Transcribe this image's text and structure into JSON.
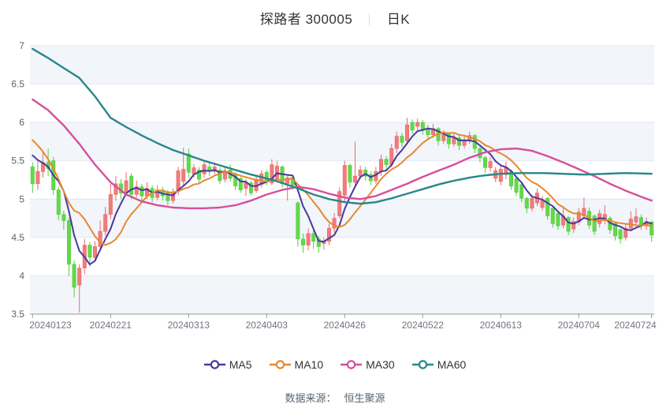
{
  "title": {
    "main": "探路者 300005",
    "separator": "｜",
    "period": "日K"
  },
  "footer": {
    "prefix": "数据来源：",
    "source": "恒生聚源"
  },
  "legend": {
    "items": [
      {
        "label": "MA5",
        "color": "#473a9d"
      },
      {
        "label": "MA10",
        "color": "#e6892f"
      },
      {
        "label": "MA30",
        "color": "#d64f9b"
      },
      {
        "label": "MA60",
        "color": "#27878a"
      }
    ]
  },
  "colors": {
    "up": "#f07c7c",
    "up_border": "#ea6a6a",
    "down": "#63d84b",
    "down_border": "#55cc3e",
    "band": "#f2f5fa",
    "grid": "#e2e8f2",
    "axis": "#999999",
    "axis_label": "#5a6472",
    "x_label": "#6e7682"
  },
  "chart_data": {
    "type": "candlestick",
    "title": "探路者 300005 日K",
    "ylim": [
      3.5,
      7
    ],
    "y_ticks": [
      "7",
      "6.5",
      "6",
      "5.5",
      "5",
      "4.5",
      "4",
      "3.5"
    ],
    "x_tick_labels": [
      "20240123",
      "20240221",
      "20240313",
      "20240403",
      "20240426",
      "20240522",
      "20240613",
      "20240704",
      "20240724"
    ],
    "x_tick_indices": [
      0,
      15,
      30,
      45,
      60,
      75,
      90,
      105,
      119
    ],
    "legend_entries": [
      "MA5",
      "MA10",
      "MA30",
      "MA60"
    ],
    "dates": [
      "20240123",
      "20240124",
      "20240125",
      "20240126",
      "20240129",
      "20240130",
      "20240131",
      "20240201",
      "20240202",
      "20240205",
      "20240206",
      "20240207",
      "20240208",
      "20240219",
      "20240220",
      "20240221",
      "20240222",
      "20240223",
      "20240226",
      "20240227",
      "20240228",
      "20240229",
      "20240301",
      "20240304",
      "20240305",
      "20240306",
      "20240307",
      "20240308",
      "20240311",
      "20240312",
      "20240313",
      "20240314",
      "20240315",
      "20240318",
      "20240319",
      "20240320",
      "20240321",
      "20240322",
      "20240325",
      "20240326",
      "20240327",
      "20240328",
      "20240329",
      "20240401",
      "20240402",
      "20240403",
      "20240408",
      "20240409",
      "20240410",
      "20240411",
      "20240412",
      "20240415",
      "20240416",
      "20240417",
      "20240418",
      "20240419",
      "20240422",
      "20240423",
      "20240424",
      "20240425",
      "20240426",
      "20240429",
      "20240430",
      "20240506",
      "20240507",
      "20240508",
      "20240509",
      "20240510",
      "20240513",
      "20240514",
      "20240515",
      "20240516",
      "20240517",
      "20240520",
      "20240521",
      "20240522",
      "20240523",
      "20240524",
      "20240527",
      "20240528",
      "20240529",
      "20240530",
      "20240531",
      "20240603",
      "20240604",
      "20240605",
      "20240606",
      "20240607",
      "20240611",
      "20240612",
      "20240613",
      "20240614",
      "20240617",
      "20240618",
      "20240619",
      "20240620",
      "20240621",
      "20240624",
      "20240625",
      "20240626",
      "20240627",
      "20240628",
      "20240701",
      "20240702",
      "20240703",
      "20240704",
      "20240705",
      "20240708",
      "20240709",
      "20240710",
      "20240711",
      "20240712",
      "20240715",
      "20240716",
      "20240717",
      "20240718",
      "20240719",
      "20240722",
      "20240723",
      "20240724"
    ],
    "ohlc_order": [
      "open",
      "close",
      "low",
      "high"
    ],
    "ohlc": [
      [
        5.42,
        5.2,
        5.08,
        5.48
      ],
      [
        5.2,
        5.36,
        5.12,
        5.52
      ],
      [
        5.36,
        5.48,
        5.28,
        5.62
      ],
      [
        5.48,
        5.4,
        5.3,
        5.66
      ],
      [
        5.5,
        5.12,
        5.05,
        5.55
      ],
      [
        5.12,
        4.8,
        4.72,
        5.16
      ],
      [
        4.8,
        4.72,
        4.6,
        4.85
      ],
      [
        4.72,
        4.15,
        4.0,
        4.76
      ],
      [
        4.15,
        3.85,
        3.72,
        4.2
      ],
      [
        3.88,
        4.1,
        3.52,
        4.15
      ],
      [
        4.1,
        4.4,
        4.02,
        4.48
      ],
      [
        4.4,
        4.24,
        4.12,
        4.44
      ],
      [
        4.24,
        4.38,
        4.18,
        4.45
      ],
      [
        4.38,
        4.58,
        4.32,
        4.72
      ],
      [
        4.58,
        4.8,
        4.52,
        4.9
      ],
      [
        4.8,
        5.06,
        4.74,
        5.2
      ],
      [
        5.06,
        5.2,
        4.98,
        5.3
      ],
      [
        5.2,
        5.08,
        5.0,
        5.26
      ],
      [
        5.08,
        5.24,
        5.04,
        5.35
      ],
      [
        5.3,
        5.06,
        5.0,
        5.34
      ],
      [
        5.06,
        5.16,
        5.02,
        5.24
      ],
      [
        5.16,
        5.04,
        4.96,
        5.2
      ],
      [
        5.04,
        5.14,
        5.0,
        5.22
      ],
      [
        5.14,
        5.02,
        4.96,
        5.18
      ],
      [
        5.02,
        5.12,
        4.98,
        5.18
      ],
      [
        5.12,
        5.04,
        4.98,
        5.16
      ],
      [
        5.08,
        4.98,
        4.92,
        5.12
      ],
      [
        4.98,
        5.08,
        4.94,
        5.14
      ],
      [
        5.11,
        5.37,
        5.05,
        5.42
      ],
      [
        5.23,
        5.39,
        5.18,
        5.67
      ],
      [
        5.59,
        5.35,
        5.28,
        5.66
      ],
      [
        5.33,
        5.41,
        5.28,
        5.46
      ],
      [
        5.38,
        5.26,
        5.2,
        5.42
      ],
      [
        5.33,
        5.45,
        5.28,
        5.5
      ],
      [
        5.42,
        5.36,
        5.3,
        5.47
      ],
      [
        5.36,
        5.42,
        5.32,
        5.48
      ],
      [
        5.38,
        5.24,
        5.2,
        5.42
      ],
      [
        5.26,
        5.35,
        5.22,
        5.42
      ],
      [
        5.38,
        5.27,
        5.23,
        5.45
      ],
      [
        5.33,
        5.17,
        5.12,
        5.35
      ],
      [
        5.27,
        5.12,
        5.08,
        5.29
      ],
      [
        5.14,
        5.22,
        5.04,
        5.26
      ],
      [
        5.21,
        5.08,
        5.05,
        5.24
      ],
      [
        5.11,
        5.26,
        5.08,
        5.32
      ],
      [
        5.19,
        5.33,
        5.15,
        5.38
      ],
      [
        5.35,
        5.22,
        5.18,
        5.38
      ],
      [
        5.21,
        5.45,
        5.18,
        5.52
      ],
      [
        5.25,
        5.43,
        5.22,
        5.5
      ],
      [
        5.42,
        5.2,
        5.15,
        5.44
      ],
      [
        5.2,
        5.28,
        4.98,
        5.32
      ],
      [
        5.28,
        5.18,
        5.12,
        5.3
      ],
      [
        4.95,
        4.48,
        4.38,
        4.97
      ],
      [
        4.48,
        4.4,
        4.3,
        4.55
      ],
      [
        4.4,
        4.55,
        4.33,
        4.62
      ],
      [
        4.55,
        4.45,
        4.35,
        4.6
      ],
      [
        4.48,
        4.38,
        4.3,
        4.52
      ],
      [
        4.42,
        4.45,
        4.34,
        4.5
      ],
      [
        4.45,
        4.62,
        4.4,
        4.68
      ],
      [
        4.62,
        4.75,
        4.56,
        4.82
      ],
      [
        4.78,
        5.1,
        4.75,
        5.15
      ],
      [
        5.05,
        5.44,
        4.95,
        5.5
      ],
      [
        5.44,
        5.22,
        5.15,
        5.46
      ],
      [
        5.22,
        5.3,
        5.15,
        5.75
      ],
      [
        5.3,
        5.38,
        5.26,
        5.44
      ],
      [
        5.38,
        5.3,
        5.24,
        5.42
      ],
      [
        5.32,
        5.24,
        5.18,
        5.36
      ],
      [
        5.24,
        5.36,
        5.2,
        5.42
      ],
      [
        5.36,
        5.52,
        5.3,
        5.58
      ],
      [
        5.52,
        5.45,
        5.38,
        5.56
      ],
      [
        5.45,
        5.66,
        5.42,
        5.72
      ],
      [
        5.66,
        5.82,
        5.6,
        5.88
      ],
      [
        5.82,
        5.74,
        5.68,
        5.86
      ],
      [
        5.76,
        5.97,
        5.72,
        6.06
      ],
      [
        6.0,
        5.9,
        5.85,
        6.04
      ],
      [
        5.95,
        6.0,
        5.88,
        6.05
      ],
      [
        6.0,
        5.9,
        5.84,
        6.03
      ],
      [
        5.92,
        5.84,
        5.78,
        5.97
      ],
      [
        5.84,
        5.92,
        5.8,
        5.98
      ],
      [
        5.92,
        5.76,
        5.7,
        5.94
      ],
      [
        5.76,
        5.85,
        5.72,
        5.9
      ],
      [
        5.85,
        5.72,
        5.66,
        5.87
      ],
      [
        5.72,
        5.8,
        5.68,
        5.86
      ],
      [
        5.8,
        5.7,
        5.64,
        5.83
      ],
      [
        5.7,
        5.77,
        5.66,
        5.84
      ],
      [
        5.77,
        5.83,
        5.72,
        5.88
      ],
      [
        5.83,
        5.66,
        5.6,
        5.85
      ],
      [
        5.66,
        5.54,
        5.48,
        5.68
      ],
      [
        5.54,
        5.41,
        5.34,
        5.56
      ],
      [
        5.41,
        5.49,
        5.36,
        5.54
      ],
      [
        5.27,
        5.37,
        5.22,
        5.42
      ],
      [
        5.23,
        5.39,
        5.18,
        5.44
      ],
      [
        5.32,
        5.42,
        5.26,
        5.49
      ],
      [
        5.36,
        5.17,
        5.12,
        5.38
      ],
      [
        5.27,
        5.09,
        5.04,
        5.29
      ],
      [
        5.19,
        5.01,
        4.96,
        5.21
      ],
      [
        5.01,
        4.88,
        4.82,
        5.03
      ],
      [
        4.88,
        5.01,
        4.84,
        5.06
      ],
      [
        4.95,
        5.08,
        4.91,
        5.14
      ],
      [
        4.89,
        4.99,
        4.85,
        5.04
      ],
      [
        5.01,
        4.78,
        4.73,
        5.03
      ],
      [
        4.88,
        4.68,
        4.63,
        4.9
      ],
      [
        4.81,
        4.65,
        4.6,
        4.83
      ],
      [
        4.66,
        4.78,
        4.62,
        4.88
      ],
      [
        4.76,
        4.58,
        4.53,
        4.78
      ],
      [
        4.61,
        4.71,
        4.56,
        4.76
      ],
      [
        4.7,
        4.83,
        4.66,
        4.88
      ],
      [
        4.78,
        4.88,
        4.74,
        5.02
      ],
      [
        4.84,
        4.66,
        4.61,
        4.89
      ],
      [
        4.78,
        4.58,
        4.53,
        4.8
      ],
      [
        4.68,
        4.81,
        4.63,
        4.86
      ],
      [
        4.72,
        4.8,
        4.67,
        4.92
      ],
      [
        4.75,
        4.6,
        4.55,
        4.78
      ],
      [
        4.68,
        4.52,
        4.46,
        4.7
      ],
      [
        4.6,
        4.48,
        4.42,
        4.62
      ],
      [
        4.5,
        4.62,
        4.46,
        4.68
      ],
      [
        4.62,
        4.74,
        4.58,
        4.84
      ],
      [
        4.7,
        4.77,
        4.66,
        4.88
      ],
      [
        4.76,
        4.65,
        4.6,
        4.8
      ],
      [
        4.65,
        4.71,
        4.6,
        4.76
      ],
      [
        4.7,
        4.53,
        4.44,
        4.72
      ]
    ],
    "ma5_head": [
      5.57,
      5.51,
      5.47,
      5.42
    ],
    "ma10_head": [
      5.77,
      5.7,
      5.62,
      5.52,
      5.4,
      5.26,
      5.1,
      4.95,
      4.85
    ],
    "ma30_keypoints": [
      [
        0,
        6.3
      ],
      [
        3,
        6.16
      ],
      [
        6,
        5.96
      ],
      [
        9,
        5.72
      ],
      [
        12,
        5.45
      ],
      [
        15,
        5.22
      ],
      [
        18,
        5.06
      ],
      [
        21,
        4.97
      ],
      [
        24,
        4.92
      ],
      [
        27,
        4.89
      ],
      [
        30,
        4.88
      ],
      [
        33,
        4.88
      ],
      [
        36,
        4.89
      ],
      [
        39,
        4.92
      ],
      [
        42,
        4.98
      ],
      [
        45,
        5.06
      ],
      [
        48,
        5.12
      ],
      [
        51,
        5.16
      ],
      [
        54,
        5.13
      ],
      [
        57,
        5.07
      ],
      [
        60,
        5.02
      ],
      [
        63,
        5.0
      ],
      [
        66,
        5.04
      ],
      [
        69,
        5.12
      ],
      [
        72,
        5.2
      ],
      [
        75,
        5.29
      ],
      [
        78,
        5.37
      ],
      [
        81,
        5.45
      ],
      [
        84,
        5.54
      ],
      [
        87,
        5.61
      ],
      [
        90,
        5.65
      ],
      [
        93,
        5.66
      ],
      [
        96,
        5.63
      ],
      [
        99,
        5.56
      ],
      [
        102,
        5.48
      ],
      [
        105,
        5.39
      ],
      [
        108,
        5.3
      ],
      [
        111,
        5.2
      ],
      [
        114,
        5.11
      ],
      [
        117,
        5.03
      ],
      [
        119,
        4.98
      ]
    ],
    "ma60_keypoints": [
      [
        0,
        6.96
      ],
      [
        3,
        6.84
      ],
      [
        6,
        6.71
      ],
      [
        9,
        6.58
      ],
      [
        12,
        6.34
      ],
      [
        15,
        6.06
      ],
      [
        18,
        5.94
      ],
      [
        21,
        5.83
      ],
      [
        24,
        5.73
      ],
      [
        27,
        5.64
      ],
      [
        30,
        5.57
      ],
      [
        33,
        5.5
      ],
      [
        36,
        5.44
      ],
      [
        39,
        5.38
      ],
      [
        42,
        5.32
      ],
      [
        45,
        5.27
      ],
      [
        48,
        5.21
      ],
      [
        51,
        5.14
      ],
      [
        54,
        5.06
      ],
      [
        57,
        5.0
      ],
      [
        60,
        4.96
      ],
      [
        63,
        4.94
      ],
      [
        66,
        4.96
      ],
      [
        69,
        5.01
      ],
      [
        72,
        5.07
      ],
      [
        75,
        5.13
      ],
      [
        78,
        5.19
      ],
      [
        81,
        5.24
      ],
      [
        84,
        5.28
      ],
      [
        87,
        5.31
      ],
      [
        90,
        5.33
      ],
      [
        94,
        5.34
      ],
      [
        98,
        5.34
      ],
      [
        102,
        5.33
      ],
      [
        106,
        5.32
      ],
      [
        110,
        5.33
      ],
      [
        114,
        5.34
      ],
      [
        119,
        5.33
      ]
    ]
  }
}
